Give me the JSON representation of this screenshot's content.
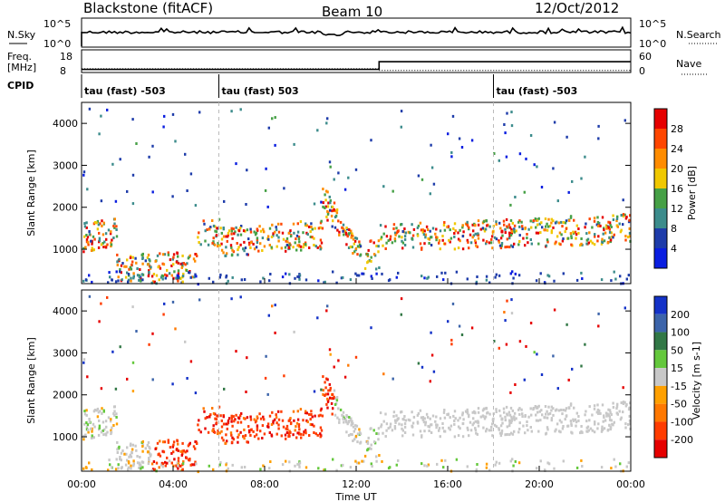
{
  "header": {
    "radar": "Blackstone (fitACF)",
    "beam": "Beam 10",
    "date": "12/Oct/2012"
  },
  "nsky_panel": {
    "left_label": "N.Sky",
    "left_ticks": [
      "10^5",
      "10^0"
    ],
    "right_label": "N.Search",
    "right_ticks": [
      "10^5",
      "10^0"
    ]
  },
  "freq_panel": {
    "left_label_1": "Freq.",
    "left_label_2": "[MHz]",
    "left_ticks": [
      "18",
      "8"
    ],
    "right_label": "Nave",
    "right_ticks": [
      "60",
      "0"
    ]
  },
  "cpid": {
    "label": "CPID",
    "segments": [
      {
        "start_h": 0,
        "text": "tau (fast) -503"
      },
      {
        "start_h": 6,
        "text": "tau (fast) 503"
      },
      {
        "start_h": 18,
        "text": "tau (fast) -503"
      }
    ]
  },
  "power_panel": {
    "ylabel": "Slant Range [km]",
    "yticks": [
      "1000",
      "2000",
      "3000",
      "4000"
    ],
    "colorbar_label": "Power [dB]",
    "colorbar_ticks": [
      "4",
      "8",
      "12",
      "16",
      "20",
      "24",
      "28"
    ],
    "colorbar_colors": [
      "#0a1ee0",
      "#1e3caa",
      "#3c8c8c",
      "#46a046",
      "#f0c800",
      "#ff8c00",
      "#ff4600",
      "#e60000"
    ]
  },
  "velocity_panel": {
    "ylabel": "Slant Range [km]",
    "yticks": [
      "1000",
      "2000",
      "3000",
      "4000"
    ],
    "colorbar_label": "Velocity [m s-1]",
    "colorbar_ticks": [
      "200",
      "100",
      "50",
      "15",
      "-15",
      "-50",
      "-100",
      "-200"
    ],
    "colorbar_colors": [
      "#1432c8",
      "#3c64aa",
      "#327846",
      "#64c83c",
      "#c8c8c8",
      "#ffa000",
      "#ff7800",
      "#ff3c00",
      "#e60000"
    ]
  },
  "xaxis": {
    "label": "Time UT",
    "ticks": [
      "00:00",
      "04:00",
      "08:00",
      "12:00",
      "16:00",
      "20:00",
      "00:00"
    ]
  },
  "chart_data": {
    "type": "heatmap",
    "x_range_hours": [
      0,
      24
    ],
    "y_range_km": [
      180,
      4500
    ],
    "series": [
      {
        "name": "Power [dB]",
        "clim": [
          0,
          30
        ]
      },
      {
        "name": "Velocity [m s-1]",
        "clim": [
          -250,
          250
        ]
      }
    ],
    "frequency_mhz": [
      {
        "from_h": 0,
        "to_h": 13,
        "value": 10
      },
      {
        "from_h": 13,
        "to_h": 24,
        "value": 15
      }
    ],
    "nave": [
      {
        "from_h": 0,
        "to_h": 13,
        "value": 14
      },
      {
        "from_h": 13,
        "to_h": 24,
        "value": 8
      }
    ]
  }
}
